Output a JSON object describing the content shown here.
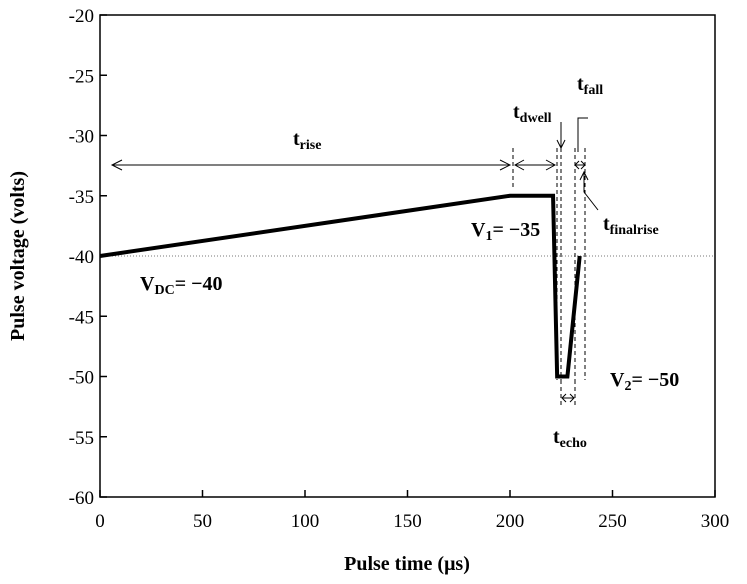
{
  "chart_data": {
    "type": "line",
    "xlabel": "Pulse time (μs)",
    "ylabel": "Pulse voltage (volts)",
    "xlim": [
      0,
      300
    ],
    "ylim": [
      -60,
      -20
    ],
    "x_ticks": [
      0,
      50,
      100,
      150,
      200,
      250,
      300
    ],
    "y_ticks": [
      -20,
      -25,
      -30,
      -35,
      -40,
      -45,
      -50,
      -55,
      -60
    ],
    "grid": false,
    "reference_line": {
      "y": -40,
      "style": "dotted"
    },
    "series": [
      {
        "x": [
          0,
          200,
          221,
          223,
          228,
          234
        ],
        "y": [
          -40,
          -35,
          -35,
          -50,
          -50,
          -40
        ]
      }
    ],
    "annotations": {
      "t_rise": {
        "main": "t",
        "sub": "rise"
      },
      "t_dwell": {
        "main": "t",
        "sub": "dwell"
      },
      "t_fall": {
        "main": "t",
        "sub": "fall"
      },
      "t_finalrise": {
        "main": "t",
        "sub": "finalrise"
      },
      "t_echo": {
        "main": "t",
        "sub": "echo"
      },
      "v_dc": {
        "main": "V",
        "sub": "DC",
        "value": "= −40"
      },
      "v_1": {
        "main": "V",
        "sub": "1",
        "value": "= −35"
      },
      "v_2": {
        "main": "V",
        "sub": "2",
        "value": "= −50"
      }
    }
  }
}
